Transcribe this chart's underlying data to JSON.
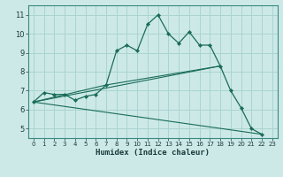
{
  "xlabel": "Humidex (Indice chaleur)",
  "background_color": "#cce9e8",
  "grid_color": "#aad4d0",
  "line_color": "#1a6b5a",
  "xlim": [
    -0.5,
    23.5
  ],
  "ylim": [
    4.5,
    11.5
  ],
  "xticks": [
    0,
    1,
    2,
    3,
    4,
    5,
    6,
    7,
    8,
    9,
    10,
    11,
    12,
    13,
    14,
    15,
    16,
    17,
    18,
    19,
    20,
    21,
    22,
    23
  ],
  "yticks": [
    5,
    6,
    7,
    8,
    9,
    10,
    11
  ],
  "series": [
    {
      "x": [
        0,
        1,
        2,
        3,
        4,
        5,
        6,
        7,
        8,
        9,
        10,
        11,
        12,
        13,
        14,
        15,
        16,
        17,
        18,
        19,
        20,
        21,
        22
      ],
      "y": [
        6.4,
        6.9,
        6.8,
        6.8,
        6.5,
        6.7,
        6.8,
        7.3,
        9.1,
        9.4,
        9.1,
        10.5,
        11.0,
        10.0,
        9.5,
        10.1,
        9.4,
        9.4,
        8.3,
        7.0,
        6.1,
        5.0,
        4.7
      ],
      "marker": true
    },
    {
      "x": [
        0,
        18
      ],
      "y": [
        6.4,
        8.3
      ],
      "marker": false
    },
    {
      "x": [
        0,
        22
      ],
      "y": [
        6.4,
        4.7
      ],
      "marker": false
    },
    {
      "x": [
        0,
        7,
        18
      ],
      "y": [
        6.4,
        7.3,
        8.3
      ],
      "marker": false
    }
  ]
}
